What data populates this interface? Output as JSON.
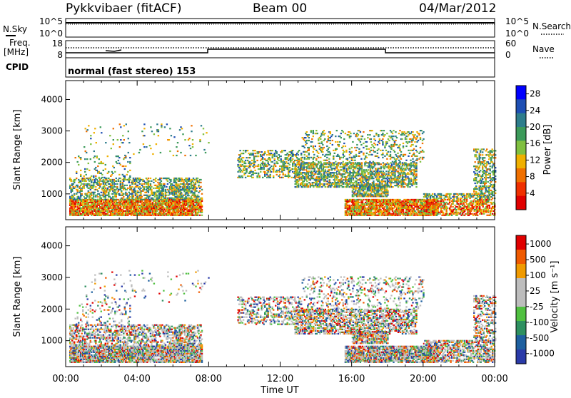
{
  "header": {
    "title": "Pykkvibaer (fitACF)",
    "beam": "Beam 00",
    "date": "04/Mar/2012"
  },
  "panel_nsky": {
    "left_label": "N.Sky",
    "right_label": "N.Search",
    "left_ticks": [
      "10^5",
      "10^0"
    ],
    "right_ticks": [
      "10^5",
      "10^0"
    ]
  },
  "panel_freq": {
    "left_label_1": "Freq.",
    "left_label_2": "[MHz]",
    "right_label": "Nave",
    "left_ticks": [
      "18",
      "8"
    ],
    "right_ticks": [
      "60",
      "0"
    ],
    "cpid_label": "CPID",
    "cpid_text": "normal (fast stereo) 153"
  },
  "time_axis": {
    "label": "Time UT",
    "ticks": [
      "00:00",
      "04:00",
      "08:00",
      "12:00",
      "16:00",
      "20:00",
      "00:00"
    ]
  },
  "colors": {
    "power_scale": [
      "#0000ff",
      "#1e4fb4",
      "#2e7d8c",
      "#3c9a5a",
      "#80c040",
      "#f0b000",
      "#f07000",
      "#f03000",
      "#e00000"
    ],
    "velocity_scale": [
      "#e00000",
      "#f05a00",
      "#f09a00",
      "#bdbdbd",
      "#bdbdbd",
      "#50c040",
      "#2e9060",
      "#1e60a0",
      "#2a3aa8"
    ]
  },
  "chart_data": [
    {
      "type": "heatmap",
      "title": "",
      "xlabel": "Time UT",
      "ylabel": "Slant Range [km]",
      "xlim": [
        0,
        24
      ],
      "ylim": [
        180,
        4600
      ],
      "yticks": [
        "1000",
        "2000",
        "3000",
        "4000"
      ],
      "colorbar": {
        "label": "Power [dB]",
        "ticks": [
          "4",
          "8",
          "12",
          "16",
          "20",
          "24",
          "28"
        ],
        "range": [
          0,
          30
        ]
      }
    },
    {
      "type": "heatmap",
      "title": "",
      "xlabel": "Time UT",
      "ylabel": "Slant Range [km]",
      "xlim": [
        0,
        24
      ],
      "ylim": [
        180,
        4600
      ],
      "yticks": [
        "1000",
        "2000",
        "3000",
        "4000"
      ],
      "colorbar": {
        "label": "Velocity [m s⁻¹]",
        "ticks": [
          "1000",
          "500",
          "100",
          "25",
          "-25",
          "-100",
          "-500",
          "-1000"
        ],
        "range": [
          -1250,
          1250
        ]
      }
    }
  ]
}
